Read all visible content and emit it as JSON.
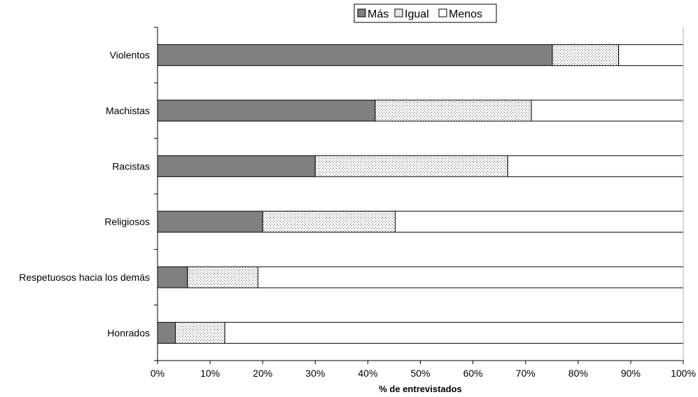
{
  "chart_data": {
    "type": "bar",
    "orientation": "horizontal",
    "stacked": true,
    "categories": [
      "Violentos",
      "Machistas",
      "Racistas",
      "Religiosos",
      "Respetuosos hacia los demás",
      "Honrados"
    ],
    "series": [
      {
        "name": "Más",
        "values": [
          75.1,
          41.4,
          30.0,
          20.0,
          5.7,
          3.4
        ],
        "fill": "#808080",
        "pattern": "solid"
      },
      {
        "name": "Igual",
        "values": [
          12.6,
          29.7,
          36.6,
          25.2,
          13.4,
          9.4
        ],
        "fill": "#ffffff",
        "pattern": "dotted"
      },
      {
        "name": "Menos",
        "values": [
          12.3,
          28.9,
          33.4,
          54.8,
          80.9,
          87.2
        ],
        "fill": "#ffffff",
        "pattern": "none"
      }
    ],
    "x_ticks": [
      "0%",
      "10%",
      "20%",
      "30%",
      "40%",
      "50%",
      "60%",
      "70%",
      "80%",
      "90%",
      "100%"
    ],
    "xlim": [
      0,
      100
    ],
    "xlabel": "% de entrevistados",
    "ylabel": "",
    "title": "",
    "grid": false,
    "legend_position": "top-center"
  }
}
